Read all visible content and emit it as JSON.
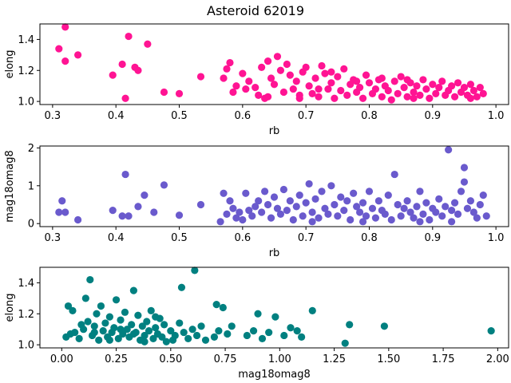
{
  "title": "Asteroid 62019",
  "chart_data": [
    {
      "type": "scatter",
      "xlabel": "rb",
      "ylabel": "elong",
      "color": "#ff1493",
      "xlim": [
        0.28,
        1.02
      ],
      "ylim": [
        0.98,
        1.5
      ],
      "xticks": [
        0.3,
        0.4,
        0.5,
        0.6,
        0.7,
        0.8,
        0.9,
        1.0
      ],
      "xtick_labels": [
        "0.3",
        "0.4",
        "0.5",
        "0.6",
        "0.7",
        "0.8",
        "0.9",
        "1.0"
      ],
      "yticks": [
        1.0,
        1.2,
        1.4
      ],
      "ytick_labels": [
        "1.0",
        "1.2",
        "1.4"
      ],
      "points": [
        [
          0.32,
          1.48
        ],
        [
          0.31,
          1.34
        ],
        [
          0.32,
          1.26
        ],
        [
          0.34,
          1.3
        ],
        [
          0.395,
          1.17
        ],
        [
          0.41,
          1.24
        ],
        [
          0.42,
          1.42
        ],
        [
          0.43,
          1.22
        ],
        [
          0.435,
          1.2
        ],
        [
          0.45,
          1.37
        ],
        [
          0.415,
          1.02
        ],
        [
          0.476,
          1.06
        ],
        [
          0.5,
          1.05
        ],
        [
          0.534,
          1.16
        ],
        [
          0.57,
          1.15
        ],
        [
          0.575,
          1.21
        ],
        [
          0.58,
          1.25
        ],
        [
          0.585,
          1.06
        ],
        [
          0.59,
          1.1
        ],
        [
          0.6,
          1.18
        ],
        [
          0.605,
          1.08
        ],
        [
          0.61,
          1.13
        ],
        [
          0.62,
          1.09
        ],
        [
          0.625,
          1.04
        ],
        [
          0.63,
          1.22
        ],
        [
          0.635,
          1.02
        ],
        [
          0.64,
          1.26
        ],
        [
          0.645,
          1.15
        ],
        [
          0.65,
          1.11
        ],
        [
          0.655,
          1.29
        ],
        [
          0.66,
          1.2
        ],
        [
          0.665,
          1.06
        ],
        [
          0.67,
          1.24
        ],
        [
          0.675,
          1.17
        ],
        [
          0.68,
          1.08
        ],
        [
          0.685,
          1.13
        ],
        [
          0.69,
          1.04
        ],
        [
          0.695,
          1.19
        ],
        [
          0.7,
          1.22
        ],
        [
          0.705,
          1.1
        ],
        [
          0.71,
          1.05
        ],
        [
          0.715,
          1.15
        ],
        [
          0.72,
          1.03
        ],
        [
          0.725,
          1.23
        ],
        [
          0.73,
          1.18
        ],
        [
          0.735,
          1.08
        ],
        [
          0.74,
          1.12
        ],
        [
          0.745,
          1.02
        ],
        [
          0.75,
          1.16
        ],
        [
          0.755,
          1.07
        ],
        [
          0.76,
          1.21
        ],
        [
          0.765,
          1.04
        ],
        [
          0.77,
          1.11
        ],
        [
          0.775,
          1.14
        ],
        [
          0.78,
          1.06
        ],
        [
          0.785,
          1.09
        ],
        [
          0.79,
          1.02
        ],
        [
          0.795,
          1.17
        ],
        [
          0.8,
          1.12
        ],
        [
          0.805,
          1.05
        ],
        [
          0.81,
          1.08
        ],
        [
          0.815,
          1.14
        ],
        [
          0.82,
          1.03
        ],
        [
          0.825,
          1.1
        ],
        [
          0.83,
          1.07
        ],
        [
          0.835,
          1.01
        ],
        [
          0.84,
          1.13
        ],
        [
          0.845,
          1.05
        ],
        [
          0.85,
          1.16
        ],
        [
          0.855,
          1.09
        ],
        [
          0.86,
          1.03
        ],
        [
          0.865,
          1.12
        ],
        [
          0.87,
          1.06
        ],
        [
          0.875,
          1.1
        ],
        [
          0.88,
          1.04
        ],
        [
          0.885,
          1.14
        ],
        [
          0.89,
          1.08
        ],
        [
          0.895,
          1.02
        ],
        [
          0.9,
          1.11
        ],
        [
          0.905,
          1.05
        ],
        [
          0.91,
          1.09
        ],
        [
          0.915,
          1.13
        ],
        [
          0.92,
          1.04
        ],
        [
          0.925,
          1.07
        ],
        [
          0.93,
          1.1
        ],
        [
          0.935,
          1.03
        ],
        [
          0.94,
          1.12
        ],
        [
          0.945,
          1.06
        ],
        [
          0.95,
          1.09
        ],
        [
          0.955,
          1.04
        ],
        [
          0.96,
          1.11
        ],
        [
          0.965,
          1.07
        ],
        [
          0.97,
          1.03
        ],
        [
          0.975,
          1.09
        ],
        [
          0.98,
          1.05
        ],
        [
          0.69,
          1.02
        ],
        [
          0.74,
          1.19
        ],
        [
          0.82,
          1.15
        ],
        [
          0.87,
          1.02
        ],
        [
          0.64,
          1.03
        ],
        [
          0.72,
          1.08
        ],
        [
          0.78,
          1.13
        ],
        [
          0.86,
          1.14
        ],
        [
          0.96,
          1.02
        ]
      ]
    },
    {
      "type": "scatter",
      "xlabel": "rb",
      "ylabel": "mag18omag8",
      "color": "#6a5acd",
      "xlim": [
        0.28,
        1.02
      ],
      "ylim": [
        -0.08,
        2.05
      ],
      "xticks": [
        0.3,
        0.4,
        0.5,
        0.6,
        0.7,
        0.8,
        0.9,
        1.0
      ],
      "xtick_labels": [
        "0.3",
        "0.4",
        "0.5",
        "0.6",
        "0.7",
        "0.8",
        "0.9",
        "1.0"
      ],
      "yticks": [
        0,
        1,
        2
      ],
      "ytick_labels": [
        "0",
        "1",
        "2"
      ],
      "points": [
        [
          0.31,
          0.3
        ],
        [
          0.315,
          0.6
        ],
        [
          0.32,
          0.3
        ],
        [
          0.34,
          0.1
        ],
        [
          0.395,
          0.35
        ],
        [
          0.41,
          0.2
        ],
        [
          0.415,
          1.3
        ],
        [
          0.42,
          0.2
        ],
        [
          0.435,
          0.45
        ],
        [
          0.445,
          0.75
        ],
        [
          0.46,
          0.3
        ],
        [
          0.476,
          1.02
        ],
        [
          0.5,
          0.22
        ],
        [
          0.534,
          0.5
        ],
        [
          0.565,
          0.05
        ],
        [
          0.57,
          0.8
        ],
        [
          0.575,
          0.25
        ],
        [
          0.58,
          0.6
        ],
        [
          0.585,
          0.4
        ],
        [
          0.59,
          0.15
        ],
        [
          0.595,
          0.3
        ],
        [
          0.6,
          0.1
        ],
        [
          0.605,
          0.8
        ],
        [
          0.61,
          0.35
        ],
        [
          0.615,
          0.2
        ],
        [
          0.62,
          0.45
        ],
        [
          0.625,
          0.6
        ],
        [
          0.63,
          0.3
        ],
        [
          0.635,
          0.85
        ],
        [
          0.64,
          0.5
        ],
        [
          0.645,
          0.15
        ],
        [
          0.65,
          0.7
        ],
        [
          0.655,
          0.4
        ],
        [
          0.66,
          0.25
        ],
        [
          0.665,
          0.9
        ],
        [
          0.67,
          0.35
        ],
        [
          0.675,
          0.6
        ],
        [
          0.68,
          0.1
        ],
        [
          0.685,
          0.45
        ],
        [
          0.69,
          0.75
        ],
        [
          0.695,
          0.2
        ],
        [
          0.7,
          0.55
        ],
        [
          0.705,
          1.05
        ],
        [
          0.71,
          0.3
        ],
        [
          0.715,
          0.65
        ],
        [
          0.72,
          0.15
        ],
        [
          0.725,
          0.85
        ],
        [
          0.73,
          0.4
        ],
        [
          0.735,
          0.25
        ],
        [
          0.74,
          1.0
        ],
        [
          0.745,
          0.5
        ],
        [
          0.75,
          0.2
        ],
        [
          0.755,
          0.7
        ],
        [
          0.76,
          0.35
        ],
        [
          0.765,
          0.6
        ],
        [
          0.77,
          0.1
        ],
        [
          0.775,
          0.8
        ],
        [
          0.78,
          0.45
        ],
        [
          0.785,
          0.3
        ],
        [
          0.79,
          0.55
        ],
        [
          0.795,
          0.2
        ],
        [
          0.8,
          0.85
        ],
        [
          0.805,
          0.4
        ],
        [
          0.81,
          0.15
        ],
        [
          0.815,
          0.6
        ],
        [
          0.82,
          0.35
        ],
        [
          0.825,
          0.25
        ],
        [
          0.83,
          0.75
        ],
        [
          0.835,
          0.1
        ],
        [
          0.84,
          1.3
        ],
        [
          0.845,
          0.5
        ],
        [
          0.85,
          0.2
        ],
        [
          0.855,
          0.4
        ],
        [
          0.86,
          0.6
        ],
        [
          0.865,
          0.3
        ],
        [
          0.87,
          0.15
        ],
        [
          0.875,
          0.45
        ],
        [
          0.88,
          0.85
        ],
        [
          0.885,
          0.25
        ],
        [
          0.89,
          0.55
        ],
        [
          0.895,
          0.1
        ],
        [
          0.9,
          0.4
        ],
        [
          0.905,
          0.3
        ],
        [
          0.91,
          0.65
        ],
        [
          0.915,
          0.2
        ],
        [
          0.92,
          0.45
        ],
        [
          0.925,
          1.95
        ],
        [
          0.93,
          0.35
        ],
        [
          0.935,
          0.55
        ],
        [
          0.94,
          0.25
        ],
        [
          0.945,
          0.85
        ],
        [
          0.95,
          1.48
        ],
        [
          0.955,
          0.4
        ],
        [
          0.96,
          0.6
        ],
        [
          0.965,
          0.3
        ],
        [
          0.97,
          0.15
        ],
        [
          0.975,
          0.5
        ],
        [
          0.98,
          0.75
        ],
        [
          0.985,
          0.2
        ],
        [
          0.95,
          1.1
        ],
        [
          0.93,
          0.05
        ],
        [
          0.88,
          0.05
        ],
        [
          0.79,
          0.05
        ],
        [
          0.71,
          0.05
        ]
      ]
    },
    {
      "type": "scatter",
      "xlabel": "mag18omag8",
      "ylabel": "elong",
      "color": "#008080",
      "xlim": [
        -0.1,
        2.05
      ],
      "ylim": [
        0.98,
        1.5
      ],
      "xticks": [
        0.0,
        0.25,
        0.5,
        0.75,
        1.0,
        1.25,
        1.5,
        1.75,
        2.0
      ],
      "xtick_labels": [
        "0.00",
        "0.25",
        "0.50",
        "0.75",
        "1.00",
        "1.25",
        "1.50",
        "1.75",
        "2.00"
      ],
      "yticks": [
        1.0,
        1.2,
        1.4
      ],
      "ytick_labels": [
        "1.0",
        "1.2",
        "1.4"
      ],
      "points": [
        [
          0.02,
          1.05
        ],
        [
          0.03,
          1.25
        ],
        [
          0.05,
          1.22
        ],
        [
          0.06,
          1.08
        ],
        [
          0.08,
          1.04
        ],
        [
          0.1,
          1.1
        ],
        [
          0.11,
          1.3
        ],
        [
          0.12,
          1.15
        ],
        [
          0.13,
          1.42
        ],
        [
          0.14,
          1.06
        ],
        [
          0.15,
          1.12
        ],
        [
          0.16,
          1.2
        ],
        [
          0.17,
          1.03
        ],
        [
          0.18,
          1.25
        ],
        [
          0.19,
          1.09
        ],
        [
          0.2,
          1.14
        ],
        [
          0.21,
          1.05
        ],
        [
          0.22,
          1.18
        ],
        [
          0.23,
          1.08
        ],
        [
          0.24,
          1.11
        ],
        [
          0.25,
          1.29
        ],
        [
          0.26,
          1.04
        ],
        [
          0.27,
          1.16
        ],
        [
          0.28,
          1.07
        ],
        [
          0.29,
          1.21
        ],
        [
          0.3,
          1.1
        ],
        [
          0.31,
          1.05
        ],
        [
          0.32,
          1.13
        ],
        [
          0.33,
          1.35
        ],
        [
          0.34,
          1.08
        ],
        [
          0.35,
          1.19
        ],
        [
          0.36,
          1.03
        ],
        [
          0.37,
          1.12
        ],
        [
          0.38,
          1.06
        ],
        [
          0.39,
          1.15
        ],
        [
          0.4,
          1.09
        ],
        [
          0.41,
          1.22
        ],
        [
          0.42,
          1.04
        ],
        [
          0.43,
          1.11
        ],
        [
          0.44,
          1.07
        ],
        [
          0.45,
          1.17
        ],
        [
          0.46,
          1.05
        ],
        [
          0.47,
          1.13
        ],
        [
          0.48,
          1.02
        ],
        [
          0.5,
          1.09
        ],
        [
          0.52,
          1.06
        ],
        [
          0.54,
          1.14
        ],
        [
          0.55,
          1.37
        ],
        [
          0.56,
          1.08
        ],
        [
          0.58,
          1.04
        ],
        [
          0.6,
          1.1
        ],
        [
          0.61,
          1.48
        ],
        [
          0.62,
          1.06
        ],
        [
          0.64,
          1.12
        ],
        [
          0.66,
          1.03
        ],
        [
          0.7,
          1.05
        ],
        [
          0.71,
          1.26
        ],
        [
          0.72,
          1.09
        ],
        [
          0.74,
          1.24
        ],
        [
          0.76,
          1.07
        ],
        [
          0.78,
          1.12
        ],
        [
          0.85,
          1.06
        ],
        [
          0.88,
          1.09
        ],
        [
          0.9,
          1.2
        ],
        [
          0.92,
          1.04
        ],
        [
          0.95,
          1.08
        ],
        [
          0.98,
          1.18
        ],
        [
          1.02,
          1.06
        ],
        [
          1.05,
          1.11
        ],
        [
          1.08,
          1.09
        ],
        [
          1.1,
          1.05
        ],
        [
          1.15,
          1.22
        ],
        [
          1.3,
          1.01
        ],
        [
          1.32,
          1.13
        ],
        [
          1.48,
          1.12
        ],
        [
          1.97,
          1.09
        ],
        [
          0.04,
          1.07
        ],
        [
          0.09,
          1.13
        ],
        [
          0.15,
          1.08
        ],
        [
          0.22,
          1.03
        ],
        [
          0.27,
          1.1
        ],
        [
          0.33,
          1.07
        ],
        [
          0.38,
          1.02
        ],
        [
          0.43,
          1.18
        ],
        [
          0.51,
          1.03
        ]
      ]
    }
  ]
}
